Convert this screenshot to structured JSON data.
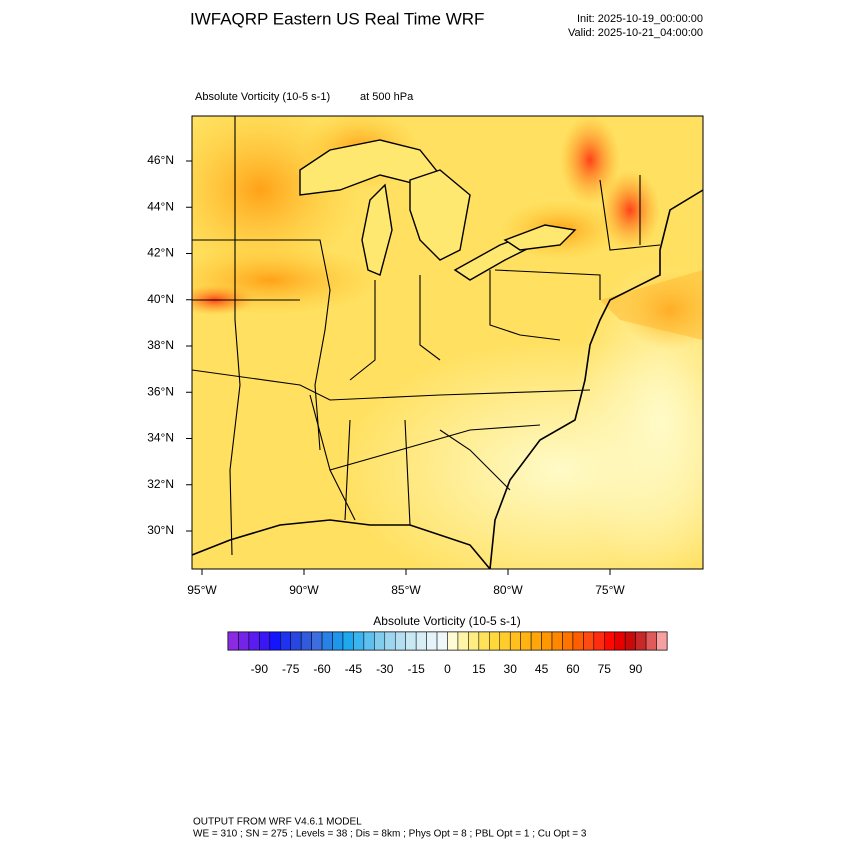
{
  "header": {
    "title": "IWFAQRP Eastern US Real Time WRF",
    "init": "Init: 2025-10-19_00:00:00",
    "valid": "Valid: 2025-10-21_04:00:00"
  },
  "field": {
    "name": "Absolute Vorticity   (10-5 s-1)",
    "level": "at   500 hPa"
  },
  "map": {
    "lat_labels": [
      "46°N",
      "44°N",
      "42°N",
      "40°N",
      "38°N",
      "36°N",
      "34°N",
      "32°N",
      "30°N"
    ],
    "lon_labels": [
      "95°W",
      "90°W",
      "85°W",
      "80°W",
      "75°W"
    ]
  },
  "colorbar": {
    "title": "Absolute Vorticity  (10-5 s-1)",
    "range": [
      -105,
      105
    ],
    "ticks": [
      -90,
      -75,
      -60,
      -45,
      -30,
      -15,
      0,
      15,
      30,
      45,
      60,
      75,
      90
    ],
    "colors": [
      "#8a2be2",
      "#7424e8",
      "#5a1cf0",
      "#3a18f5",
      "#1414ff",
      "#1e32f0",
      "#2846e0",
      "#325ade",
      "#3c6ee0",
      "#2882e6",
      "#1e96ec",
      "#1ea8f0",
      "#3cb4f0",
      "#5ec0ee",
      "#82ccee",
      "#9ed6f0",
      "#b4dff2",
      "#c8e8f4",
      "#d8eef6",
      "#e4f4f8",
      "#eef8fa",
      "#fffbd2",
      "#fff5a8",
      "#ffec82",
      "#ffe25a",
      "#ffd83c",
      "#ffcc2c",
      "#ffc01e",
      "#ffb414",
      "#ffa60a",
      "#ff9800",
      "#ff8800",
      "#ff7400",
      "#ff5e00",
      "#ff4a10",
      "#ff2c10",
      "#ff0a00",
      "#e60000",
      "#c80a0a",
      "#c82828",
      "#e05a5a",
      "#f8a0a0"
    ]
  },
  "footer": {
    "line1": "OUTPUT FROM WRF V4.6.1 MODEL",
    "line2": "WE = 310 ; SN = 275 ; Levels = 38 ; Dis = 8km ; Phys Opt = 8 ; PBL Opt = 1 ; Cu Opt = 3"
  }
}
